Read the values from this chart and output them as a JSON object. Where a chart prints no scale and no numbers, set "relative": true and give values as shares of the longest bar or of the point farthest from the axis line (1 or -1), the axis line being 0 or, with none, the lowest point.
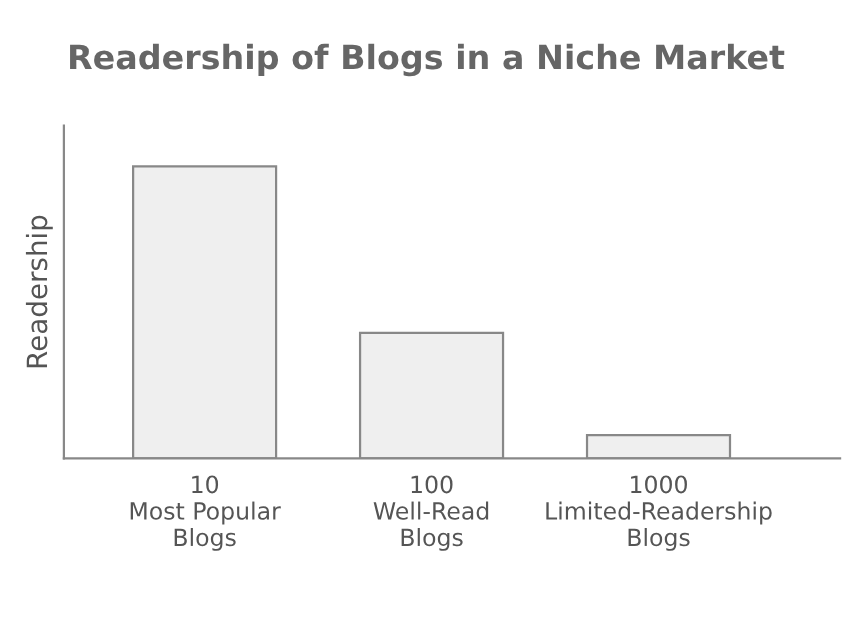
{
  "chart_data": {
    "type": "bar",
    "title": "Readership of Blogs in a Niche Market",
    "ylabel": "Readership",
    "categories": [
      "10\nMost Popular\nBlogs",
      "100\nWell-Read\nBlogs",
      "1000\nLimited-Readership\nBlogs"
    ],
    "values": [
      1,
      0.43,
      0.08
    ],
    "color": "#efefef",
    "relative": true,
    "grid": false,
    "legend": false
  }
}
